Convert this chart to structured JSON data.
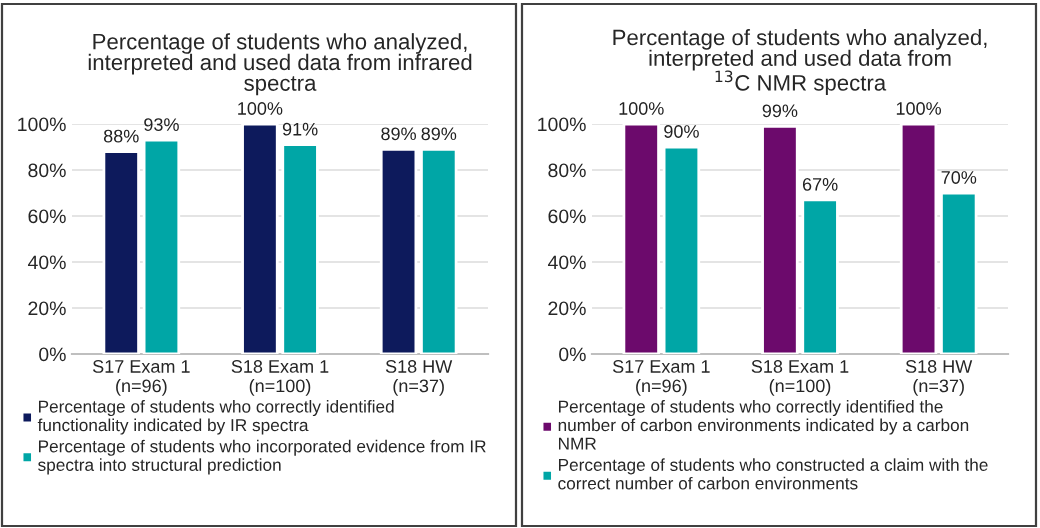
{
  "chart_data": [
    {
      "type": "bar",
      "title": "Percentage of students who analyzed,\ninterpreted and used data from infrared\nspectra",
      "categories": [
        "S17 Exam 1\n(n=96)",
        "S18 Exam 1\n(n=100)",
        "S18 HW\n(n=37)"
      ],
      "series": [
        {
          "name": "Percentage of students who correctly identified\nfunctionality indicated by IR spectra",
          "color": "#0d1a5c",
          "values": [
            88,
            100,
            89
          ],
          "value_labels": [
            "88%",
            "100%",
            "89%"
          ]
        },
        {
          "name": "Percentage of students who incorporated evidence from IR\nspectra into structural prediction",
          "color": "#00a6a6",
          "values": [
            93,
            91,
            89
          ],
          "value_labels": [
            "93%",
            "91%",
            "89%"
          ]
        }
      ],
      "ylim": [
        0,
        100
      ],
      "yticks": [
        {
          "value": 0,
          "label": "0%"
        },
        {
          "value": 20,
          "label": "20%"
        },
        {
          "value": 40,
          "label": "40%"
        },
        {
          "value": 60,
          "label": "60%"
        },
        {
          "value": 80,
          "label": "80%"
        },
        {
          "value": 100,
          "label": "100%"
        }
      ],
      "grid": "y",
      "legend": "bottom"
    },
    {
      "type": "bar",
      "title": "Percentage of students who analyzed,\ninterpreted and used data from\n$^{13}$C NMR spectra",
      "categories": [
        "S17 Exam 1\n(n=96)",
        "S18 Exam 1\n(n=100)",
        "S18 HW\n(n=37)"
      ],
      "series": [
        {
          "name": "Percentage of students who correctly identified the\nnumber of carbon environments indicated by a carbon\nNMR",
          "color": "#6c0a6c",
          "values": [
            100,
            99,
            100
          ],
          "value_labels": [
            "100%",
            "99%",
            "100%"
          ]
        },
        {
          "name": "Percentage of students who constructed a claim with the\ncorrect number of carbon environments",
          "color": "#00a6a6",
          "values": [
            90,
            67,
            70
          ],
          "value_labels": [
            "90%",
            "67%",
            "70%"
          ]
        }
      ],
      "ylim": [
        0,
        100
      ],
      "yticks": [
        {
          "value": 0,
          "label": "0%"
        },
        {
          "value": 20,
          "label": "20%"
        },
        {
          "value": 40,
          "label": "40%"
        },
        {
          "value": 60,
          "label": "60%"
        },
        {
          "value": 80,
          "label": "80%"
        },
        {
          "value": 100,
          "label": "100%"
        }
      ],
      "grid": "y",
      "legend": "bottom"
    }
  ]
}
